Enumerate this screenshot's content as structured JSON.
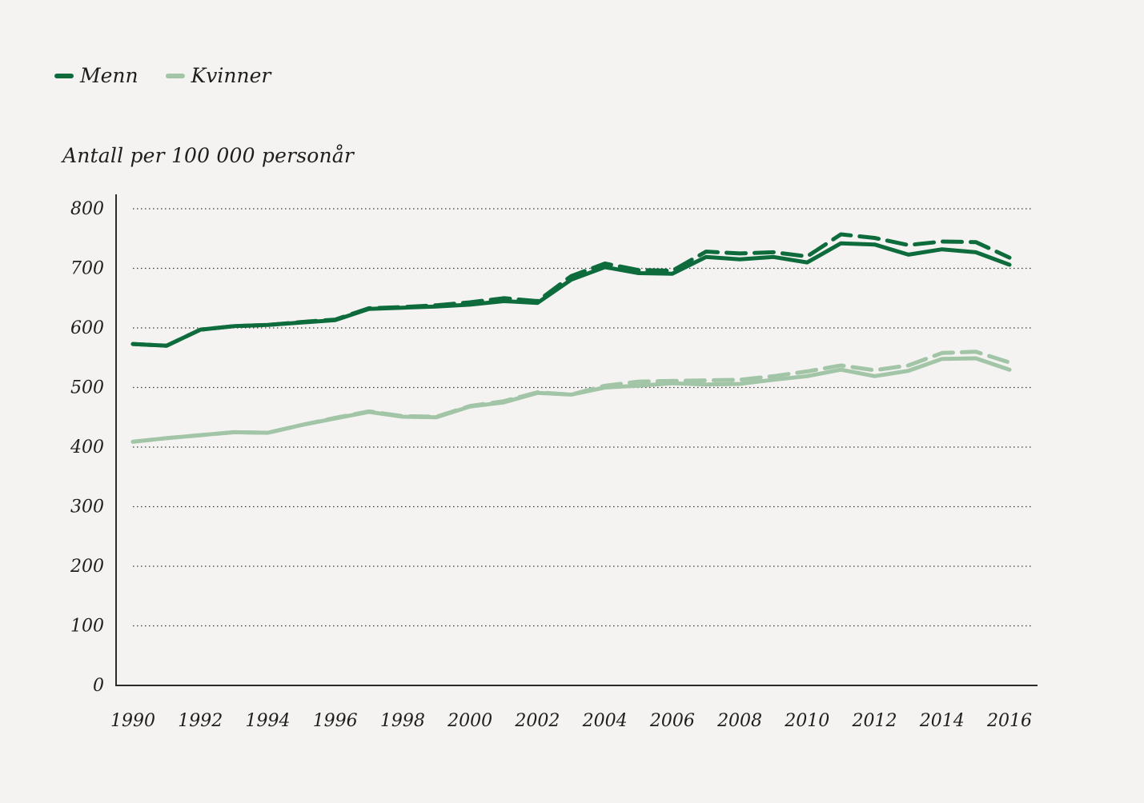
{
  "chart_data": {
    "type": "line",
    "title": "",
    "ylabel": "Antall per 100 000 personår",
    "xlabel": "",
    "ylim": [
      0,
      800
    ],
    "yticks": [
      "0",
      "100",
      "200",
      "300",
      "400",
      "500",
      "600",
      "700",
      "800"
    ],
    "xticks": [
      "1990",
      "1992",
      "1994",
      "1996",
      "1998",
      "2000",
      "2002",
      "2004",
      "2006",
      "2008",
      "2010",
      "2012",
      "2014",
      "2016"
    ],
    "x": [
      1990,
      1991,
      1992,
      1993,
      1994,
      1995,
      1996,
      1997,
      1998,
      1999,
      2000,
      2001,
      2002,
      2003,
      2004,
      2005,
      2006,
      2007,
      2008,
      2009,
      2010,
      2011,
      2012,
      2013,
      2014,
      2015,
      2016
    ],
    "legend": [
      {
        "label": "Menn",
        "color": "#0d6b3c"
      },
      {
        "label": "Kvinner",
        "color": "#a1c5a6"
      }
    ],
    "series": [
      {
        "name": "Menn",
        "style": "solid",
        "color": "#0d6b3c",
        "values": [
          573,
          570,
          597,
          603,
          605,
          609,
          613,
          632,
          634,
          636,
          639,
          645,
          642,
          681,
          702,
          692,
          691,
          719,
          715,
          719,
          710,
          742,
          740,
          723,
          732,
          727,
          706
        ]
      },
      {
        "name": "Menn",
        "style": "dashed",
        "color": "#0d6b3c",
        "values": [
          573,
          570,
          597,
          603,
          605,
          610,
          614,
          633,
          635,
          638,
          643,
          650,
          645,
          687,
          708,
          697,
          696,
          728,
          725,
          727,
          720,
          757,
          751,
          739,
          745,
          744,
          718
        ]
      },
      {
        "name": "Kvinner",
        "style": "solid",
        "color": "#a1c5a6",
        "values": [
          409,
          415,
          420,
          425,
          424,
          437,
          448,
          459,
          451,
          450,
          468,
          475,
          491,
          488,
          500,
          503,
          507,
          505,
          506,
          513,
          519,
          530,
          519,
          528,
          548,
          549,
          530
        ]
      },
      {
        "name": "Kvinner",
        "style": "dashed",
        "color": "#a1c5a6",
        "values": [
          409,
          415,
          420,
          425,
          424,
          437,
          449,
          460,
          452,
          451,
          469,
          477,
          492,
          488,
          503,
          510,
          511,
          512,
          513,
          519,
          527,
          537,
          529,
          537,
          558,
          560,
          542
        ]
      }
    ]
  }
}
